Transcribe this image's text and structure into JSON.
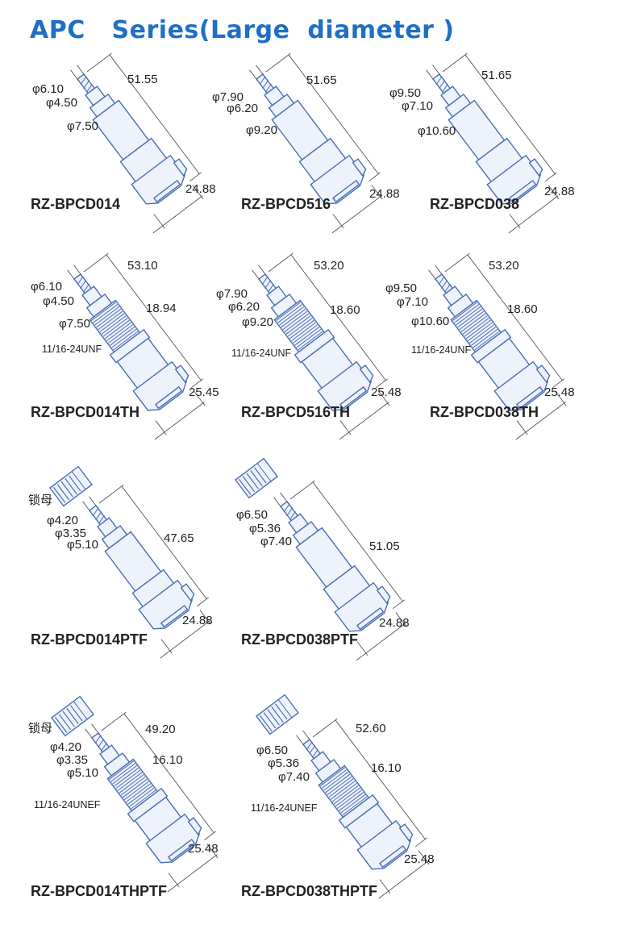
{
  "title": "APC   Series(Large  diameter )",
  "colors": {
    "title": "#1f6fc4",
    "outline": "#4a6db5",
    "fill": "#eef2fa",
    "dimension": "#555555"
  },
  "products": [
    {
      "name": "RZ-BPCD014",
      "labels": [
        "φ6.10",
        "φ4.50",
        "φ7.50",
        "51.55",
        "24.88"
      ]
    },
    {
      "name": "RZ-BPCD516",
      "labels": [
        "φ7.90",
        "φ6.20",
        "φ9.20",
        "51.65",
        "24.88"
      ]
    },
    {
      "name": "RZ-BPCD038",
      "labels": [
        "φ9.50",
        "φ7.10",
        "φ10.60",
        "51.65",
        "24.88"
      ]
    },
    {
      "name": "RZ-BPCD014TH",
      "labels": [
        "φ6.10",
        "φ4.50",
        "φ7.50",
        "53.10",
        "18.94",
        "11/16-24UNF",
        "25.45"
      ]
    },
    {
      "name": "RZ-BPCD516TH",
      "labels": [
        "φ7.90",
        "φ6.20",
        "φ9.20",
        "53.20",
        "18.60",
        "11/16-24UNF",
        "25.48"
      ]
    },
    {
      "name": "RZ-BPCD038TH",
      "labels": [
        "φ9.50",
        "φ7.10",
        "φ10.60",
        "53.20",
        "18.60",
        "11/16-24UNF",
        "25.48"
      ]
    },
    {
      "name": "RZ-BPCD014PTF",
      "labels": [
        "锁母",
        "φ4.20",
        "φ3.35",
        "φ5.10",
        "47.65",
        "24.88"
      ]
    },
    {
      "name": "RZ-BPCD038PTF",
      "labels": [
        "φ6.50",
        "φ5.36",
        "φ7.40",
        "51.05",
        "24.88"
      ]
    },
    {
      "name": "RZ-BPCD014THPTF",
      "labels": [
        "锁母",
        "φ4.20",
        "φ3.35",
        "φ5.10",
        "49.20",
        "16.10",
        "11/16-24UNEF",
        "25.48"
      ]
    },
    {
      "name": "RZ-BPCD038THPTF",
      "labels": [
        "φ6.50",
        "φ5.36",
        "φ7.40",
        "52.60",
        "16.10",
        "11/16-24UNEF",
        "25.48"
      ]
    }
  ]
}
